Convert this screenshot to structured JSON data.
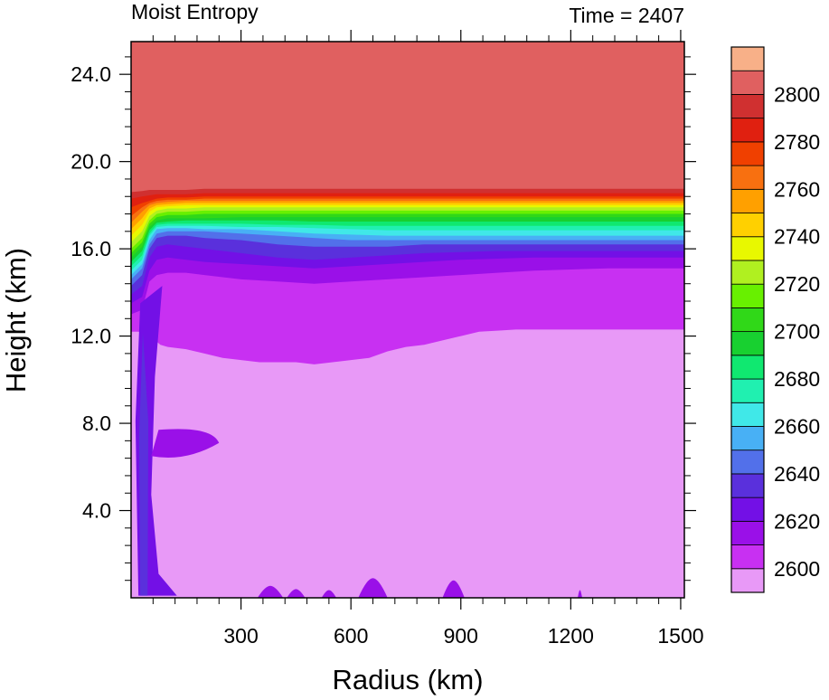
{
  "chart_data": {
    "type": "heatmap",
    "title_left": "Moist Entropy",
    "title_right": "Time = 2407",
    "xlabel": "Radius (km)",
    "ylabel": "Height (km)",
    "xlim": [
      0,
      1510
    ],
    "ylim": [
      0,
      25.5
    ],
    "xticks": [
      300,
      600,
      900,
      1200,
      1500
    ],
    "xtick_labels": [
      "300",
      "600",
      "900",
      "1200",
      "1500"
    ],
    "yticks": [
      4,
      8,
      12,
      16,
      20,
      24
    ],
    "ytick_labels": [
      "4.0",
      "8.0",
      "12.0",
      "16.0",
      "20.0",
      "24.0"
    ],
    "colorbar": {
      "levels": [
        2600,
        2610,
        2620,
        2630,
        2640,
        2650,
        2660,
        2670,
        2680,
        2690,
        2700,
        2710,
        2720,
        2730,
        2740,
        2750,
        2760,
        2770,
        2780,
        2790,
        2800
      ],
      "tick_labels": [
        "2600",
        "2620",
        "2640",
        "2660",
        "2680",
        "2700",
        "2720",
        "2740",
        "2760",
        "2780",
        "2800"
      ],
      "colors": [
        "#e899f7",
        "#c830f2",
        "#9a10e8",
        "#7310e6",
        "#5a30dc",
        "#5270ea",
        "#48b0f5",
        "#40e8e8",
        "#20f0b0",
        "#10e870",
        "#18d030",
        "#30d818",
        "#68f000",
        "#b0f020",
        "#e8f800",
        "#ffd000",
        "#ffa000",
        "#f87010",
        "#f04000",
        "#e02010",
        "#d03030",
        "#e06060",
        "#f8b088"
      ]
    },
    "profiles": {
      "radius_km": [
        0,
        30,
        50,
        70,
        100,
        150,
        200,
        300,
        400,
        500,
        600,
        700,
        800,
        900,
        1000,
        1100,
        1200,
        1300,
        1400,
        1510
      ],
      "boundaries_km": {
        "b2610": [
          13.0,
          13.2,
          14.5,
          14.8,
          14.9,
          14.9,
          14.8,
          14.6,
          14.5,
          14.4,
          14.5,
          14.6,
          14.7,
          14.8,
          14.9,
          15.0,
          15.05,
          15.1,
          15.1,
          15.1
        ],
        "b2620": [
          13.5,
          13.8,
          15.0,
          15.5,
          15.6,
          15.5,
          15.4,
          15.3,
          15.2,
          15.1,
          15.2,
          15.3,
          15.4,
          15.5,
          15.55,
          15.6,
          15.6,
          15.6,
          15.6,
          15.6
        ],
        "b2630": [
          13.9,
          14.3,
          15.6,
          16.1,
          16.2,
          16.1,
          16.0,
          15.8,
          15.6,
          15.5,
          15.6,
          15.7,
          15.8,
          15.85,
          15.9,
          15.9,
          15.9,
          15.9,
          15.9,
          15.9
        ],
        "b2640": [
          14.3,
          14.8,
          16.0,
          16.5,
          16.6,
          16.6,
          16.5,
          16.4,
          16.2,
          16.1,
          16.1,
          16.1,
          16.2,
          16.2,
          16.2,
          16.2,
          16.2,
          16.2,
          16.2,
          16.2
        ],
        "b2650": [
          14.6,
          15.1,
          16.2,
          16.7,
          16.8,
          16.8,
          16.8,
          16.7,
          16.6,
          16.5,
          16.4,
          16.4,
          16.4,
          16.4,
          16.4,
          16.4,
          16.4,
          16.4,
          16.4,
          16.4
        ],
        "b2660": [
          14.8,
          15.3,
          16.4,
          16.9,
          16.95,
          16.95,
          16.9,
          16.9,
          16.8,
          16.7,
          16.65,
          16.6,
          16.6,
          16.6,
          16.6,
          16.6,
          16.6,
          16.6,
          16.6,
          16.6
        ],
        "b2670": [
          15.0,
          15.5,
          16.6,
          17.0,
          17.05,
          17.05,
          17.05,
          17.0,
          17.0,
          16.95,
          16.9,
          16.85,
          16.85,
          16.85,
          16.85,
          16.85,
          16.85,
          16.85,
          16.85,
          16.85
        ],
        "b2680": [
          15.2,
          15.7,
          16.7,
          17.1,
          17.15,
          17.15,
          17.15,
          17.15,
          17.1,
          17.1,
          17.05,
          17.05,
          17.05,
          17.05,
          17.05,
          17.05,
          17.05,
          17.05,
          17.05,
          17.05
        ],
        "b2690": [
          15.4,
          15.9,
          16.85,
          17.2,
          17.25,
          17.3,
          17.3,
          17.3,
          17.3,
          17.25,
          17.25,
          17.25,
          17.25,
          17.25,
          17.25,
          17.25,
          17.25,
          17.25,
          17.25,
          17.25
        ],
        "b2700": [
          15.6,
          16.1,
          17.0,
          17.3,
          17.4,
          17.4,
          17.4,
          17.45,
          17.45,
          17.45,
          17.45,
          17.45,
          17.45,
          17.45,
          17.45,
          17.45,
          17.45,
          17.45,
          17.45,
          17.45
        ],
        "b2710": [
          15.8,
          16.3,
          17.15,
          17.45,
          17.55,
          17.55,
          17.6,
          17.6,
          17.6,
          17.6,
          17.6,
          17.6,
          17.6,
          17.6,
          17.6,
          17.6,
          17.6,
          17.6,
          17.6,
          17.6
        ],
        "b2720": [
          16.0,
          16.5,
          17.3,
          17.6,
          17.7,
          17.7,
          17.75,
          17.75,
          17.75,
          17.75,
          17.75,
          17.75,
          17.75,
          17.75,
          17.75,
          17.75,
          17.75,
          17.75,
          17.75,
          17.75
        ],
        "b2730": [
          16.3,
          16.8,
          17.5,
          17.75,
          17.85,
          17.85,
          17.9,
          17.9,
          17.9,
          17.9,
          17.9,
          17.9,
          17.9,
          17.9,
          17.9,
          17.9,
          17.9,
          17.9,
          17.9,
          17.9
        ],
        "b2740": [
          16.6,
          17.1,
          17.7,
          17.9,
          17.95,
          18.0,
          18.0,
          18.0,
          18.0,
          18.0,
          18.0,
          18.0,
          18.0,
          18.0,
          18.0,
          18.0,
          18.0,
          18.0,
          18.0,
          18.0
        ],
        "b2750": [
          16.9,
          17.4,
          17.85,
          18.0,
          18.05,
          18.1,
          18.1,
          18.1,
          18.1,
          18.1,
          18.1,
          18.1,
          18.1,
          18.1,
          18.1,
          18.1,
          18.1,
          18.1,
          18.1,
          18.1
        ],
        "b2760": [
          17.2,
          17.7,
          18.0,
          18.1,
          18.15,
          18.2,
          18.2,
          18.2,
          18.2,
          18.2,
          18.2,
          18.2,
          18.2,
          18.2,
          18.2,
          18.2,
          18.2,
          18.2,
          18.2,
          18.2
        ],
        "b2770": [
          17.5,
          17.9,
          18.1,
          18.2,
          18.25,
          18.25,
          18.3,
          18.3,
          18.3,
          18.3,
          18.3,
          18.3,
          18.3,
          18.3,
          18.3,
          18.3,
          18.3,
          18.3,
          18.3,
          18.3
        ],
        "b2780": [
          17.9,
          18.1,
          18.2,
          18.3,
          18.35,
          18.35,
          18.4,
          18.4,
          18.4,
          18.4,
          18.4,
          18.4,
          18.4,
          18.4,
          18.4,
          18.4,
          18.4,
          18.4,
          18.4,
          18.4
        ],
        "b2790": [
          18.3,
          18.4,
          18.45,
          18.5,
          18.5,
          18.5,
          18.55,
          18.55,
          18.55,
          18.55,
          18.55,
          18.55,
          18.55,
          18.55,
          18.55,
          18.55,
          18.55,
          18.55,
          18.55,
          18.55
        ],
        "b2800": [
          18.6,
          18.65,
          18.7,
          18.7,
          18.7,
          18.7,
          18.75,
          18.75,
          18.75,
          18.75,
          18.75,
          18.75,
          18.75,
          18.75,
          18.75,
          18.75,
          18.75,
          18.75,
          18.75,
          18.75
        ]
      },
      "b2600_radius_km": [
        0,
        20,
        40,
        60,
        80,
        100,
        150,
        200,
        250,
        300,
        350,
        400,
        450,
        500,
        550,
        600,
        650,
        700,
        750,
        800,
        850,
        900,
        950,
        1000,
        1050,
        1100,
        1150,
        1200,
        1300,
        1400,
        1510
      ],
      "b2600_height_km": [
        12.2,
        12.2,
        12.1,
        11.9,
        11.6,
        11.5,
        11.4,
        11.2,
        11.0,
        10.9,
        10.8,
        10.8,
        10.8,
        10.7,
        10.8,
        10.9,
        11.0,
        11.3,
        11.5,
        11.6,
        11.8,
        12.0,
        12.2,
        12.25,
        12.3,
        12.3,
        12.3,
        12.3,
        12.3,
        12.3,
        12.3
      ]
    },
    "features": {
      "eyewall_column": {
        "radius_km": [
          20,
          65
        ],
        "base_km": 0.1,
        "top_km": 13.5,
        "level": 2620
      },
      "anvil": {
        "radius_km": [
          55,
          240
        ],
        "height_km": [
          6.5,
          7.7
        ],
        "level": 2610
      },
      "surface_patches": [
        {
          "radius_km": 380,
          "width_km": 70,
          "height_km": 0.55,
          "level": 2610
        },
        {
          "radius_km": 450,
          "width_km": 50,
          "height_km": 0.4,
          "level": 2610
        },
        {
          "radius_km": 540,
          "width_km": 40,
          "height_km": 0.35,
          "level": 2610
        },
        {
          "radius_km": 660,
          "width_km": 80,
          "height_km": 0.9,
          "level": 2610
        },
        {
          "radius_km": 880,
          "width_km": 60,
          "height_km": 0.8,
          "level": 2610
        },
        {
          "radius_km": 1225,
          "width_km": 12,
          "height_km": 0.35,
          "level": 2610
        }
      ]
    }
  }
}
